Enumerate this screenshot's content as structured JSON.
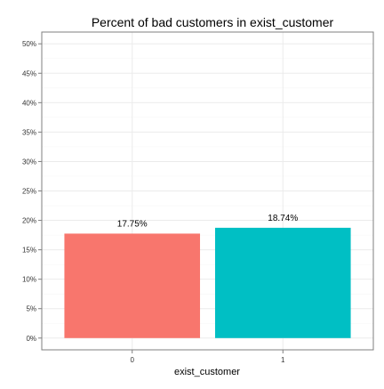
{
  "chart_data": {
    "type": "bar",
    "title": "Percent of bad customers in exist_customer",
    "xlabel": "exist_customer",
    "ylabel": "",
    "categories": [
      "0",
      "1"
    ],
    "values": [
      17.75,
      18.74
    ],
    "data_labels": [
      "17.75%",
      "18.74%"
    ],
    "bar_colors": [
      "#F8766D",
      "#00BFC4"
    ],
    "ylim": [
      -2,
      52
    ],
    "yticks": [
      0,
      5,
      10,
      15,
      20,
      25,
      30,
      35,
      40,
      45,
      50
    ],
    "ytick_labels": [
      "0%",
      "5%",
      "10%",
      "15%",
      "20%",
      "25%",
      "30%",
      "35%",
      "40%",
      "45%",
      "50%"
    ],
    "grid": true,
    "legend": "none"
  },
  "colors": {
    "panel_border": "#7f7f7f",
    "grid_major": "#ebebeb",
    "grid_minor": "#f5f5f5"
  }
}
